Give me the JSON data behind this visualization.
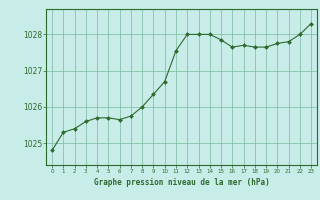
{
  "x": [
    0,
    1,
    2,
    3,
    4,
    5,
    6,
    7,
    8,
    9,
    10,
    11,
    12,
    13,
    14,
    15,
    16,
    17,
    18,
    19,
    20,
    21,
    22,
    23
  ],
  "y": [
    1024.8,
    1025.3,
    1025.4,
    1025.6,
    1025.7,
    1025.7,
    1025.65,
    1025.75,
    1026.0,
    1026.35,
    1026.7,
    1027.55,
    1028.0,
    1028.0,
    1028.0,
    1027.85,
    1027.65,
    1027.7,
    1027.65,
    1027.65,
    1027.75,
    1027.8,
    1028.0,
    1028.3
  ],
  "line_color": "#2d6a2d",
  "marker_color": "#2d6a2d",
  "bg_color": "#c8ece8",
  "grid_color": "#7abba0",
  "xlabel": "Graphe pression niveau de la mer (hPa)",
  "xlabel_color": "#2d6a2d",
  "tick_color": "#2d6a2d",
  "axis_color": "#2d6a2d",
  "yticks": [
    1025,
    1026,
    1027,
    1028
  ],
  "ylim": [
    1024.4,
    1028.7
  ],
  "xlim": [
    -0.5,
    23.5
  ],
  "xticks": [
    0,
    1,
    2,
    3,
    4,
    5,
    6,
    7,
    8,
    9,
    10,
    11,
    12,
    13,
    14,
    15,
    16,
    17,
    18,
    19,
    20,
    21,
    22,
    23
  ]
}
